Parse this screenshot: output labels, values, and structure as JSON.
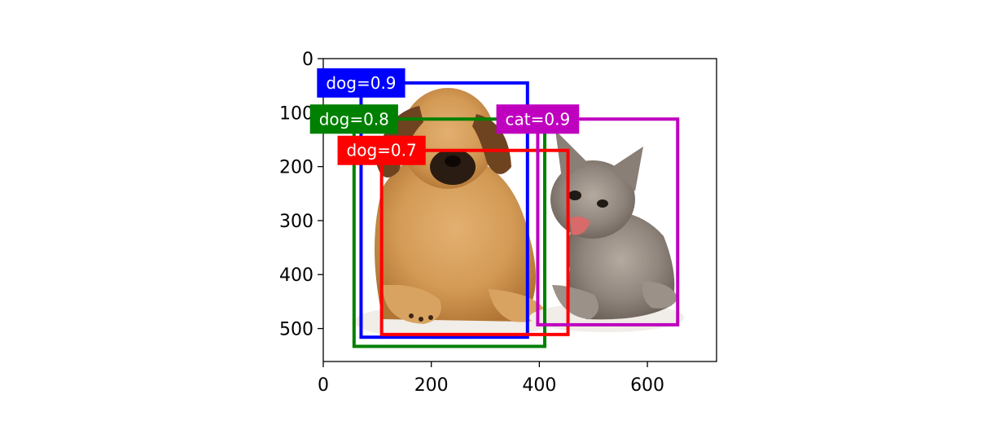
{
  "figure": {
    "image_description_hidden": false,
    "x_axis": {
      "range": [
        0,
        728
      ],
      "ticks": [
        0,
        200,
        400,
        600
      ],
      "tick_labels": [
        "0",
        "200",
        "400",
        "600"
      ]
    },
    "y_axis": {
      "range": [
        0,
        561
      ],
      "inverted": true,
      "ticks": [
        0,
        100,
        200,
        300,
        400,
        500
      ],
      "tick_labels": [
        "0",
        "100",
        "200",
        "300",
        "400",
        "500"
      ]
    },
    "boxes": [
      {
        "label": "dog=0.9",
        "color": "#0000ff",
        "x0": 70,
        "y0": 45,
        "x1": 378,
        "y1": 516
      },
      {
        "label": "dog=0.8",
        "color": "#008000",
        "x0": 57,
        "y0": 112,
        "x1": 410,
        "y1": 533
      },
      {
        "label": "dog=0.7",
        "color": "#ff0000",
        "x0": 108,
        "y0": 170,
        "x1": 453,
        "y1": 511
      },
      {
        "label": "cat=0.9",
        "color": "#bf00bf",
        "x0": 397,
        "y0": 112,
        "x1": 656,
        "y1": 493
      }
    ]
  }
}
